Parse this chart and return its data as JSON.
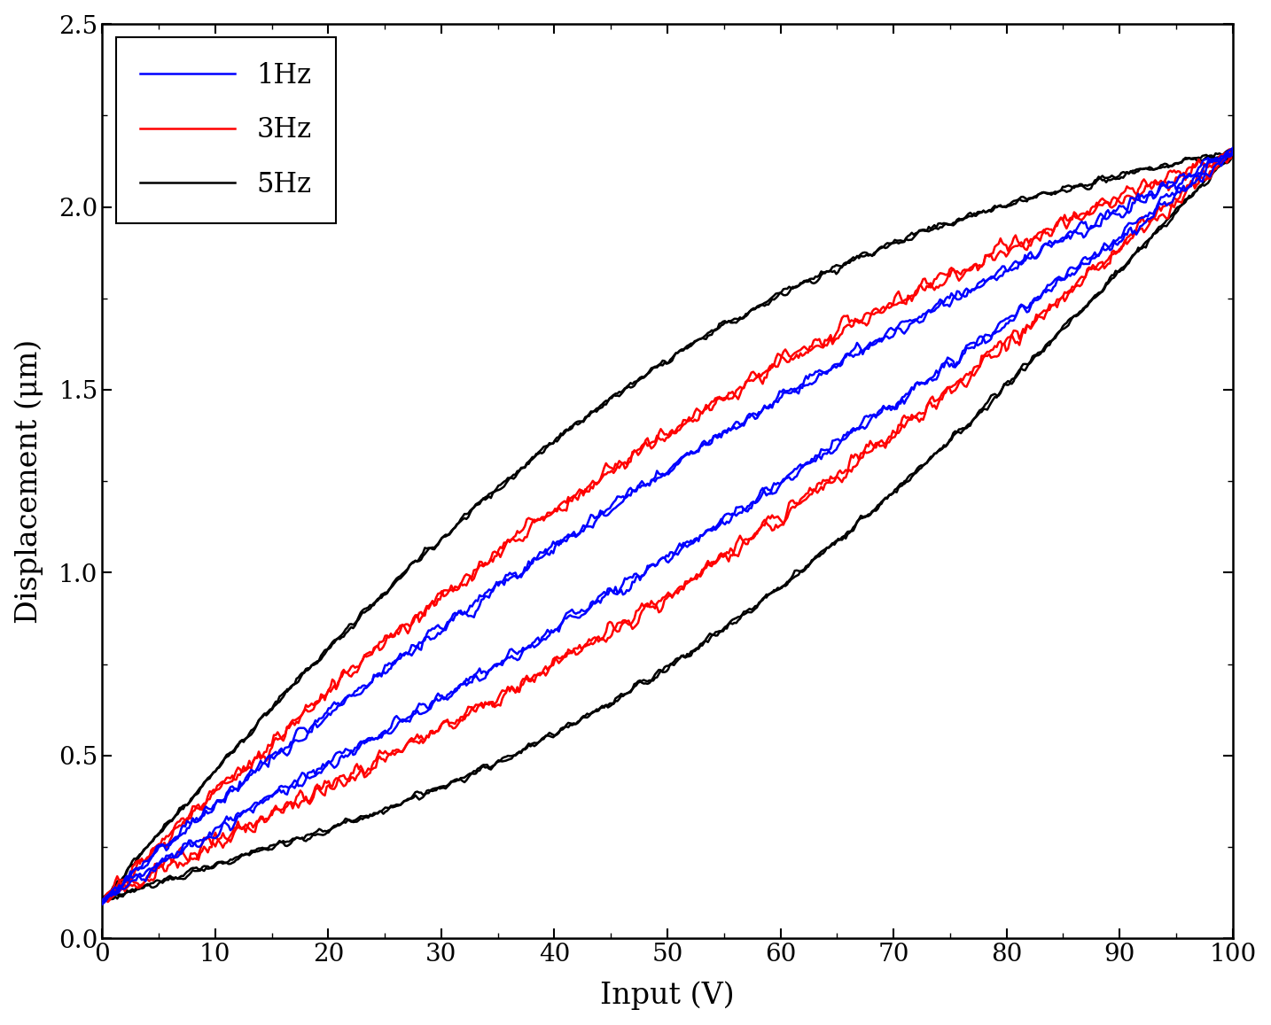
{
  "xlabel": "Input (V)",
  "ylabel": "Displacement (μm)",
  "xlim": [
    0,
    100
  ],
  "ylim": [
    0,
    2.5
  ],
  "xticks": [
    0,
    10,
    20,
    30,
    40,
    50,
    60,
    70,
    80,
    90,
    100
  ],
  "yticks": [
    0,
    0.5,
    1,
    1.5,
    2,
    2.5
  ],
  "legend_labels": [
    "1Hz",
    "3Hz",
    "5Hz"
  ],
  "legend_colors": [
    "#0000FF",
    "#FF0000",
    "#000000"
  ],
  "bg_color": "#FFFFFF",
  "line_width": 1.8,
  "start_disp": 0.1,
  "end_disp": 2.15,
  "hysteresis_configs": [
    {
      "freq": "1Hz",
      "color": "#0000FF",
      "hyst_up": 0.12,
      "hyst_down": -0.12,
      "noise": 0.018,
      "ncycles": 2,
      "zorder": 3
    },
    {
      "freq": "3Hz",
      "color": "#FF0000",
      "hyst_up": 0.22,
      "hyst_down": -0.22,
      "noise": 0.022,
      "ncycles": 2,
      "zorder": 2
    },
    {
      "freq": "5Hz",
      "color": "#000000",
      "hyst_up": 0.42,
      "hyst_down": -0.42,
      "noise": 0.01,
      "ncycles": 2,
      "zorder": 1
    }
  ]
}
